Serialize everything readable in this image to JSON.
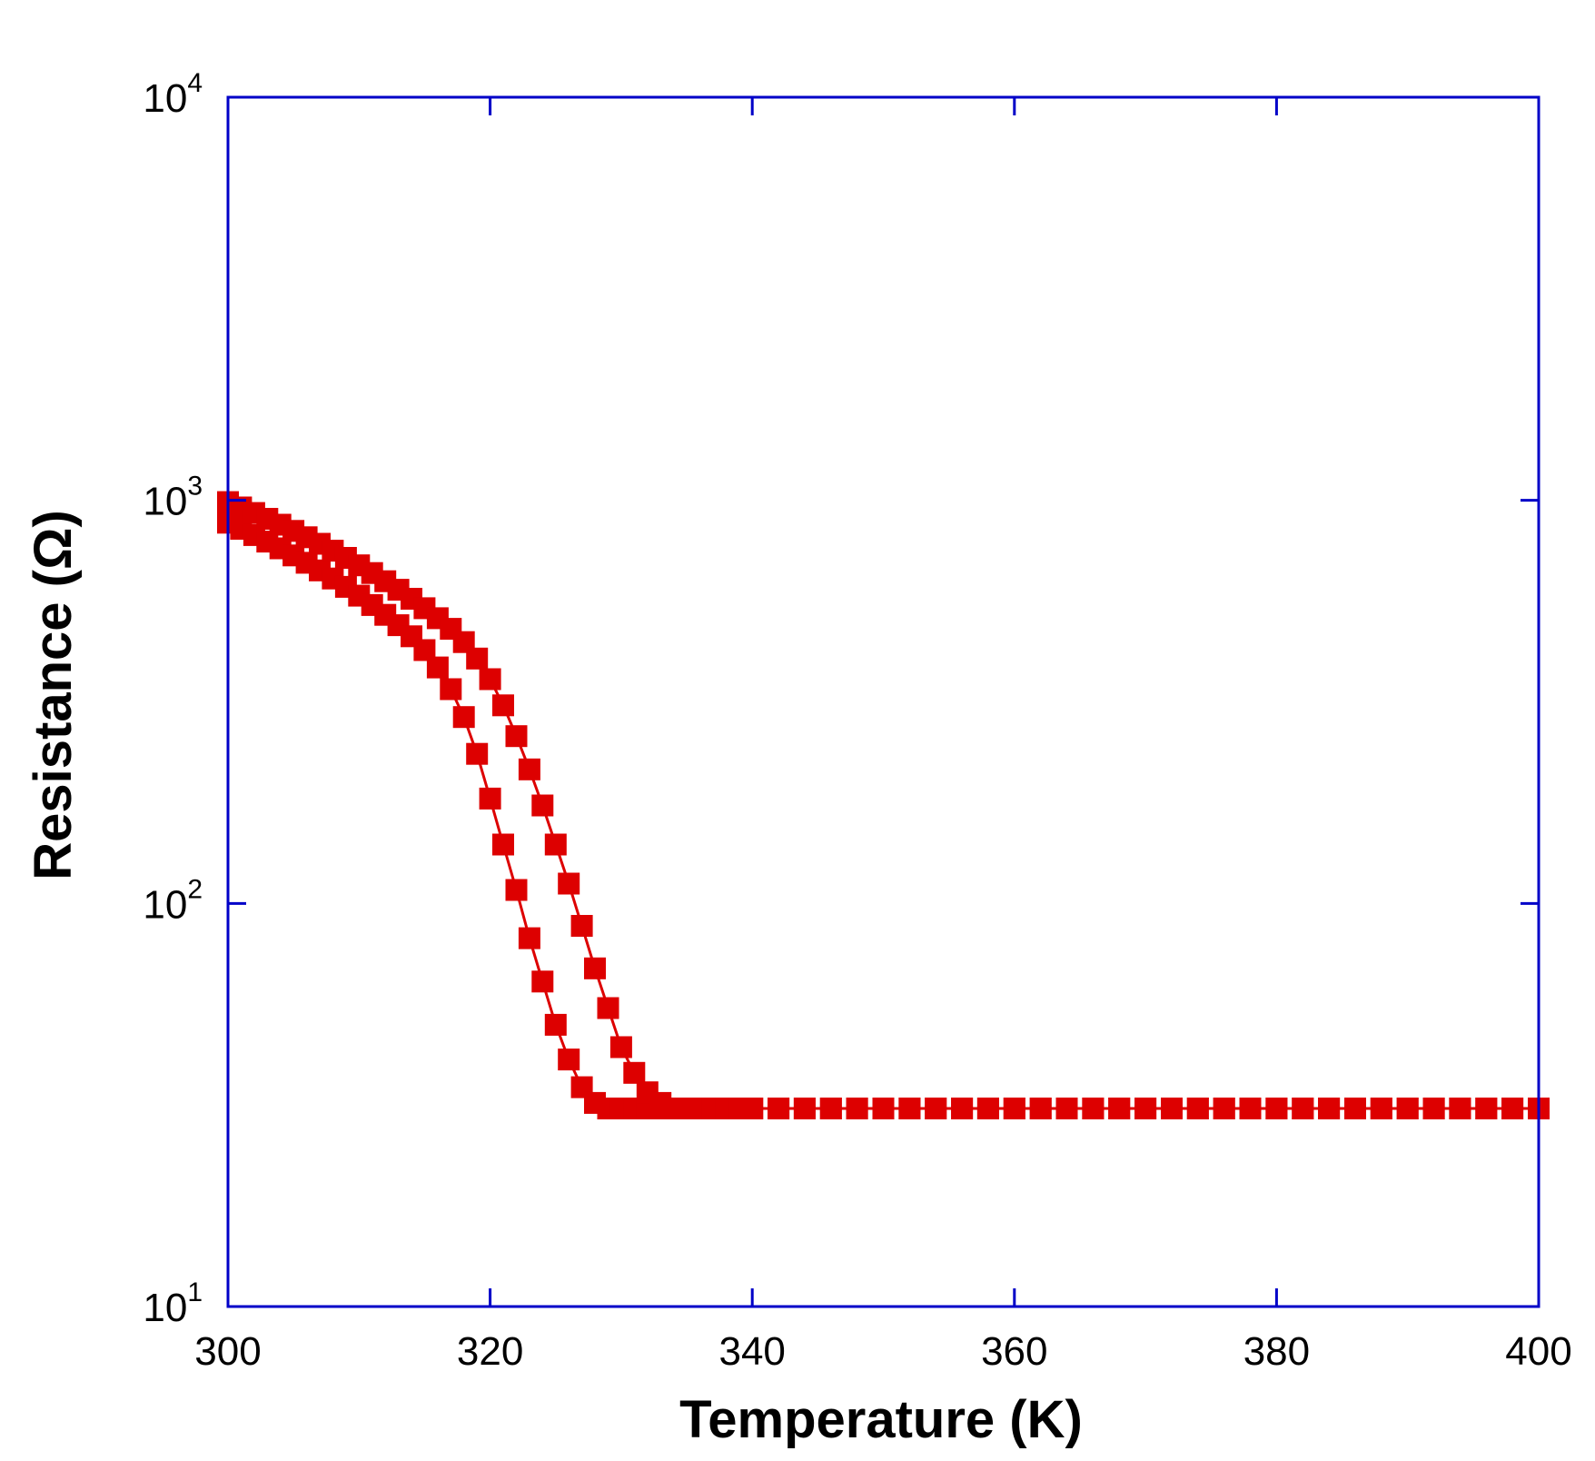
{
  "chart_data": {
    "type": "scatter",
    "xlabel": "Temperature (K)",
    "ylabel": "Resistance (Ω)",
    "xlim": [
      300,
      400
    ],
    "ylim": [
      10,
      10000
    ],
    "yscale": "log",
    "grid": false,
    "x_ticks": [
      300,
      320,
      340,
      360,
      380,
      400
    ],
    "x_tick_labels": [
      "300",
      "320",
      "340",
      "360",
      "380",
      "400"
    ],
    "y_ticks": [
      10,
      100,
      1000,
      10000
    ],
    "y_tick_base": "10",
    "y_tick_exponents": [
      "1",
      "2",
      "3",
      "4"
    ],
    "colors": {
      "axes": "#0000c8",
      "series": "#dd0000"
    },
    "marker": "square",
    "series": [
      {
        "x": [
          300,
          301,
          302,
          303,
          304,
          305,
          306,
          307,
          308,
          309,
          310,
          311,
          312,
          313,
          314,
          315,
          316,
          317,
          318,
          319,
          320,
          321,
          322,
          323,
          324,
          325,
          326,
          327,
          328,
          329,
          330,
          331,
          332,
          333,
          334,
          335,
          336,
          337,
          338,
          339,
          340,
          342,
          344,
          346,
          348,
          350,
          352,
          354,
          356,
          358,
          360,
          362,
          364,
          366,
          368,
          370,
          372,
          374,
          376,
          378,
          380,
          382,
          384,
          386,
          388,
          390,
          392,
          394,
          396,
          398,
          400
        ],
        "y": [
          880,
          850,
          820,
          790,
          760,
          730,
          700,
          670,
          640,
          610,
          580,
          550,
          520,
          490,
          460,
          425,
          385,
          340,
          290,
          235,
          182,
          140,
          108,
          82,
          64,
          50,
          41,
          35,
          32,
          31,
          31,
          31,
          31,
          31,
          31,
          31,
          31,
          31,
          31,
          31,
          31,
          31,
          31,
          31,
          31,
          31,
          31,
          31,
          31,
          31,
          31,
          31,
          31,
          31,
          31,
          31,
          31,
          31,
          31,
          31,
          31,
          31,
          31,
          31,
          31,
          31,
          31,
          31,
          31,
          31,
          31
        ]
      },
      {
        "x": [
          300,
          301,
          302,
          303,
          304,
          305,
          306,
          307,
          308,
          309,
          310,
          311,
          312,
          313,
          314,
          315,
          316,
          317,
          318,
          319,
          320,
          321,
          322,
          323,
          324,
          325,
          326,
          327,
          328,
          329,
          330,
          331,
          332,
          333,
          334,
          335,
          336,
          337,
          338,
          339,
          340,
          342,
          344,
          346,
          348,
          350,
          352,
          354,
          356,
          358,
          360,
          362,
          364,
          366,
          368,
          370,
          372,
          374,
          376,
          378,
          380,
          382,
          384,
          386,
          388,
          390,
          392,
          394,
          396,
          398,
          400
        ],
        "y": [
          990,
          960,
          930,
          900,
          870,
          840,
          810,
          780,
          750,
          720,
          690,
          660,
          630,
          600,
          570,
          540,
          510,
          480,
          445,
          405,
          360,
          310,
          260,
          215,
          175,
          140,
          112,
          88,
          69,
          55,
          44,
          38,
          34,
          32,
          31,
          31,
          31,
          31,
          31,
          31,
          31,
          31,
          31,
          31,
          31,
          31,
          31,
          31,
          31,
          31,
          31,
          31,
          31,
          31,
          31,
          31,
          31,
          31,
          31,
          31,
          31,
          31,
          31,
          31,
          31,
          31,
          31,
          31,
          31,
          31,
          31
        ]
      }
    ]
  }
}
